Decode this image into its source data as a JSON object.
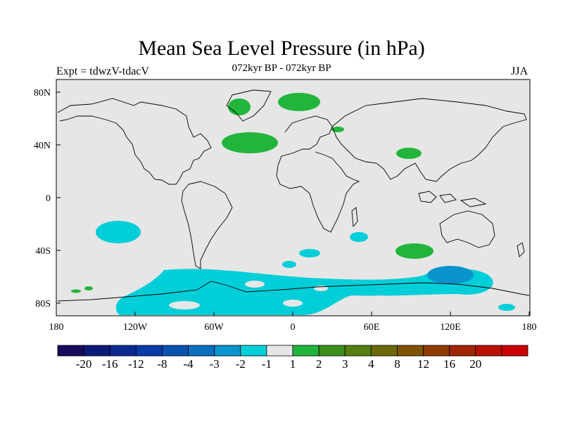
{
  "title": "Mean Sea Level Pressure (in hPa)",
  "subtitle_left": "Expt = tdwzV-tdacV",
  "subtitle_center": "072kyr BP - 072kyr BP",
  "subtitle_right": "JJA",
  "axes": {
    "lat_ticks": [
      "80N",
      "40N",
      "0",
      "40S",
      "80S"
    ],
    "lon_ticks": [
      "180",
      "120W",
      "60W",
      "0",
      "60E",
      "120E",
      "180"
    ]
  },
  "colorbar": {
    "colors": [
      "#1a0a5c",
      "#0c1a7a",
      "#0d2a93",
      "#0a3aa8",
      "#0a52b0",
      "#0a6fc0",
      "#0a93cd",
      "#00ced8",
      "#e6e6e6",
      "#22b53c",
      "#3c8f1a",
      "#557e10",
      "#6b6a0a",
      "#805200",
      "#903a00",
      "#a02600",
      "#b81000",
      "#cc0000"
    ],
    "labels": [
      "-20",
      "-16",
      "-12",
      "-8",
      "-4",
      "-3",
      "-2",
      "-1",
      "1",
      "2",
      "3",
      "4",
      "8",
      "12",
      "16",
      "20"
    ]
  },
  "colors": {
    "background": "#e6e6e6",
    "positive_1_2": "#22b53c",
    "negative_1_2": "#00ced8",
    "negative_2_3": "#0a93cd"
  }
}
